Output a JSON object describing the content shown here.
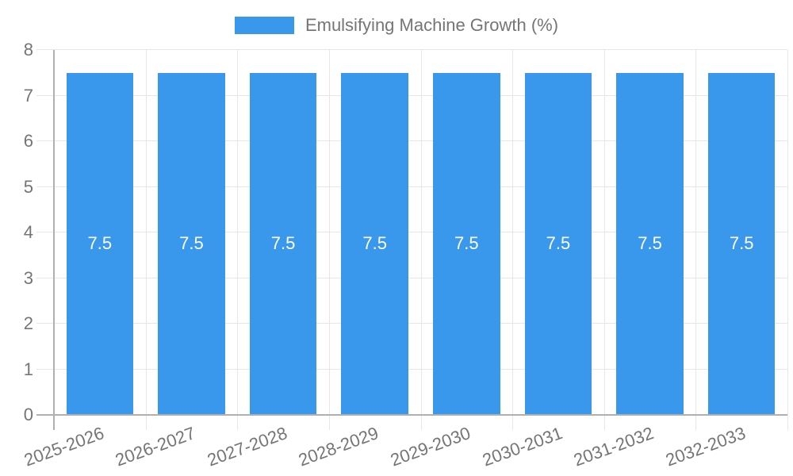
{
  "chart_data": {
    "type": "bar",
    "title": "Emulsifying Machine Growth (%)",
    "legend": [
      "Emulsifying Machine Growth (%)"
    ],
    "legend_position": "top",
    "categories": [
      "2025-2026",
      "2026-2027",
      "2027-2028",
      "2028-2029",
      "2029-2030",
      "2030-2031",
      "2031-2032",
      "2032-2033"
    ],
    "series": [
      {
        "name": "Emulsifying Machine Growth (%)",
        "values": [
          7.5,
          7.5,
          7.5,
          7.5,
          7.5,
          7.5,
          7.5,
          7.5
        ]
      }
    ],
    "bar_value_labels": [
      "7.5",
      "7.5",
      "7.5",
      "7.5",
      "7.5",
      "7.5",
      "7.5",
      "7.5"
    ],
    "xlabel": "",
    "ylabel": "",
    "ylim": [
      0,
      8
    ],
    "yticks": [
      0,
      1,
      2,
      3,
      4,
      5,
      6,
      7,
      8
    ],
    "grid": true,
    "colors": {
      "bar": "#3998EB",
      "grid": "#E6E6E6",
      "axis": "#B0B0B0",
      "tick_text": "#757575",
      "bar_label_text": "#FFFFFF",
      "background": "#FFFFFF"
    }
  }
}
